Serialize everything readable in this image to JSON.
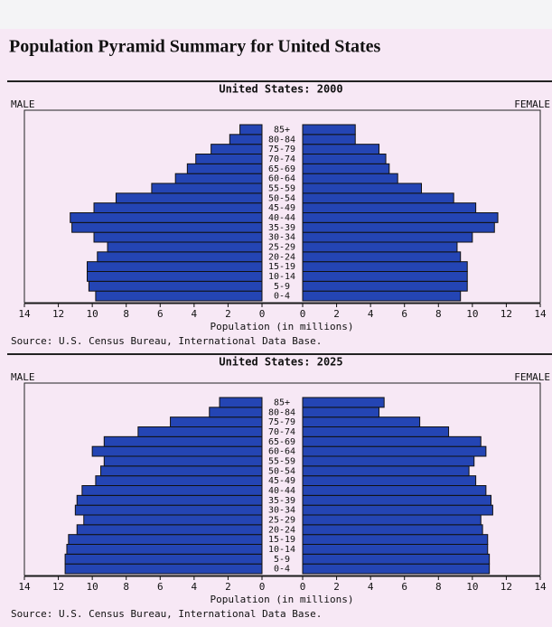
{
  "header": {
    "title": "Population Pyramid Summary for United States"
  },
  "chart_data": [
    {
      "type": "pyramid",
      "title": "United States: 2000",
      "categories": [
        "0-4",
        "5-9",
        "10-14",
        "15-19",
        "20-24",
        "25-29",
        "30-34",
        "35-39",
        "40-44",
        "45-49",
        "50-54",
        "55-59",
        "60-64",
        "65-69",
        "70-74",
        "75-79",
        "80-84",
        "85+"
      ],
      "series": [
        {
          "name": "MALE",
          "color": "#2445b4",
          "values": [
            9.8,
            10.2,
            10.3,
            10.3,
            9.7,
            9.1,
            9.9,
            11.2,
            11.3,
            9.9,
            8.6,
            6.5,
            5.1,
            4.4,
            3.9,
            3.0,
            1.9,
            1.3
          ]
        },
        {
          "name": "FEMALE",
          "color": "#2445b4",
          "values": [
            9.3,
            9.7,
            9.7,
            9.7,
            9.3,
            9.1,
            10.0,
            11.3,
            11.5,
            10.2,
            8.9,
            7.0,
            5.6,
            5.1,
            4.9,
            4.5,
            3.1,
            3.1
          ]
        }
      ],
      "xlim": [
        0,
        14
      ],
      "xticks": [
        0,
        2,
        4,
        6,
        8,
        10,
        12,
        14
      ],
      "xlabel": "Population (in millions)",
      "source": "Source: U.S. Census Bureau, International Data Base."
    },
    {
      "type": "pyramid",
      "title": "United States: 2025",
      "categories": [
        "0-4",
        "5-9",
        "10-14",
        "15-19",
        "20-24",
        "25-29",
        "30-34",
        "35-39",
        "40-44",
        "45-49",
        "50-54",
        "55-59",
        "60-64",
        "65-69",
        "70-74",
        "75-79",
        "80-84",
        "85+"
      ],
      "series": [
        {
          "name": "MALE",
          "color": "#2445b4",
          "values": [
            11.6,
            11.6,
            11.5,
            11.4,
            10.9,
            10.5,
            11.0,
            10.9,
            10.6,
            9.8,
            9.5,
            9.3,
            10.0,
            9.3,
            7.3,
            5.4,
            3.1,
            2.5
          ]
        },
        {
          "name": "FEMALE",
          "color": "#2445b4",
          "values": [
            11.0,
            11.0,
            10.9,
            10.9,
            10.6,
            10.5,
            11.2,
            11.1,
            10.8,
            10.2,
            9.8,
            10.1,
            10.8,
            10.5,
            8.6,
            6.9,
            4.5,
            4.8
          ]
        }
      ],
      "xlim": [
        0,
        14
      ],
      "xticks": [
        0,
        2,
        4,
        6,
        8,
        10,
        12,
        14
      ],
      "xlabel": "Population (in millions)",
      "source": "Source: U.S. Census Bureau, International Data Base."
    }
  ]
}
